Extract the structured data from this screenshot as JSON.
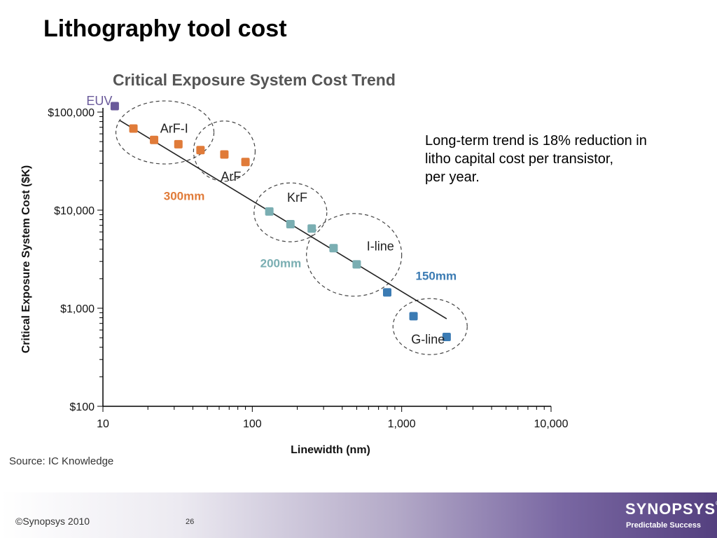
{
  "slide": {
    "title": "Lithography tool cost",
    "note_lines": [
      "Long-term trend is 18% reduction in",
      "litho capital cost per transistor,",
      "per year."
    ],
    "source": "Source:  IC Knowledge",
    "copyright": "©Synopsys 2010",
    "page_number": "26",
    "logo": "SYNOPSYS",
    "tagline": "Predictable Success"
  },
  "chart_data": {
    "type": "scatter",
    "title": "Critical Exposure System Cost Trend",
    "xlabel": "Linewidth (nm)",
    "ylabel": "Critical Exposure System Cost ($K)",
    "x_scale": "log",
    "y_scale": "log",
    "xlim": [
      10,
      10000
    ],
    "ylim": [
      100,
      100000
    ],
    "x_ticks": [
      10,
      100,
      1000,
      10000
    ],
    "x_tick_labels": [
      "10",
      "100",
      "1,000",
      "10,000"
    ],
    "y_ticks": [
      100,
      1000,
      10000,
      100000
    ],
    "y_tick_labels": [
      "$100",
      "$1,000",
      "$10,000",
      "$100,000"
    ],
    "grid": false,
    "colors": {
      "euv": "#6a5a9a",
      "300mm": "#e07b39",
      "200mm": "#7aaeb2",
      "150mm": "#3b7bb3",
      "trend": "#222222",
      "title": "#555555"
    },
    "series": [
      {
        "group": "EUV",
        "color_key": "euv",
        "points": [
          [
            12,
            115000
          ]
        ]
      },
      {
        "group": "300mm",
        "color_key": "300mm",
        "points": [
          [
            16,
            68000
          ],
          [
            22,
            52000
          ],
          [
            32,
            47000
          ],
          [
            45,
            41000
          ],
          [
            65,
            37000
          ],
          [
            90,
            31000
          ]
        ]
      },
      {
        "group": "200mm",
        "color_key": "200mm",
        "points": [
          [
            130,
            9700
          ],
          [
            180,
            7200
          ],
          [
            250,
            6500
          ],
          [
            350,
            4100
          ],
          [
            500,
            2800
          ]
        ]
      },
      {
        "group": "150mm",
        "color_key": "150mm",
        "points": [
          [
            800,
            1450
          ],
          [
            1200,
            830
          ],
          [
            2000,
            510
          ]
        ]
      }
    ],
    "trend_line": [
      [
        13,
        82000
      ],
      [
        2000,
        780
      ]
    ],
    "annotations": [
      {
        "text": "EUV",
        "color_key": "euv"
      },
      {
        "text": "ArF-I",
        "color_key": "trend"
      },
      {
        "text": "ArF",
        "color_key": "trend"
      },
      {
        "text": "300mm",
        "color_key": "300mm"
      },
      {
        "text": "KrF",
        "color_key": "trend"
      },
      {
        "text": "200mm",
        "color_key": "200mm"
      },
      {
        "text": "I-line",
        "color_key": "trend"
      },
      {
        "text": "150mm",
        "color_key": "150mm"
      },
      {
        "text": "G-line",
        "color_key": "trend"
      }
    ]
  }
}
